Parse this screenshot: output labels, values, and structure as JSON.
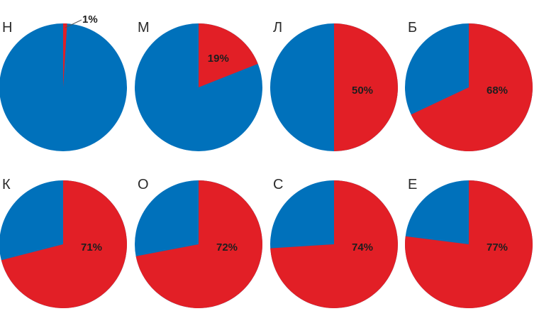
{
  "chart_data": {
    "type": "pie",
    "colors": {
      "red": "#e21f26",
      "blue": "#0071bb",
      "label": "#2b2b2b"
    },
    "pies": [
      {
        "label": "Н",
        "red_pct": 1,
        "value_label": "1%"
      },
      {
        "label": "М",
        "red_pct": 19,
        "value_label": "19%"
      },
      {
        "label": "Л",
        "red_pct": 50,
        "value_label": "50%"
      },
      {
        "label": "Б",
        "red_pct": 68,
        "value_label": "68%"
      },
      {
        "label": "К",
        "red_pct": 71,
        "value_label": "71%"
      },
      {
        "label": "О",
        "red_pct": 72,
        "value_label": "72%"
      },
      {
        "label": "С",
        "red_pct": 74,
        "value_label": "74%"
      },
      {
        "label": "Е",
        "red_pct": 77,
        "value_label": "77%"
      }
    ]
  }
}
